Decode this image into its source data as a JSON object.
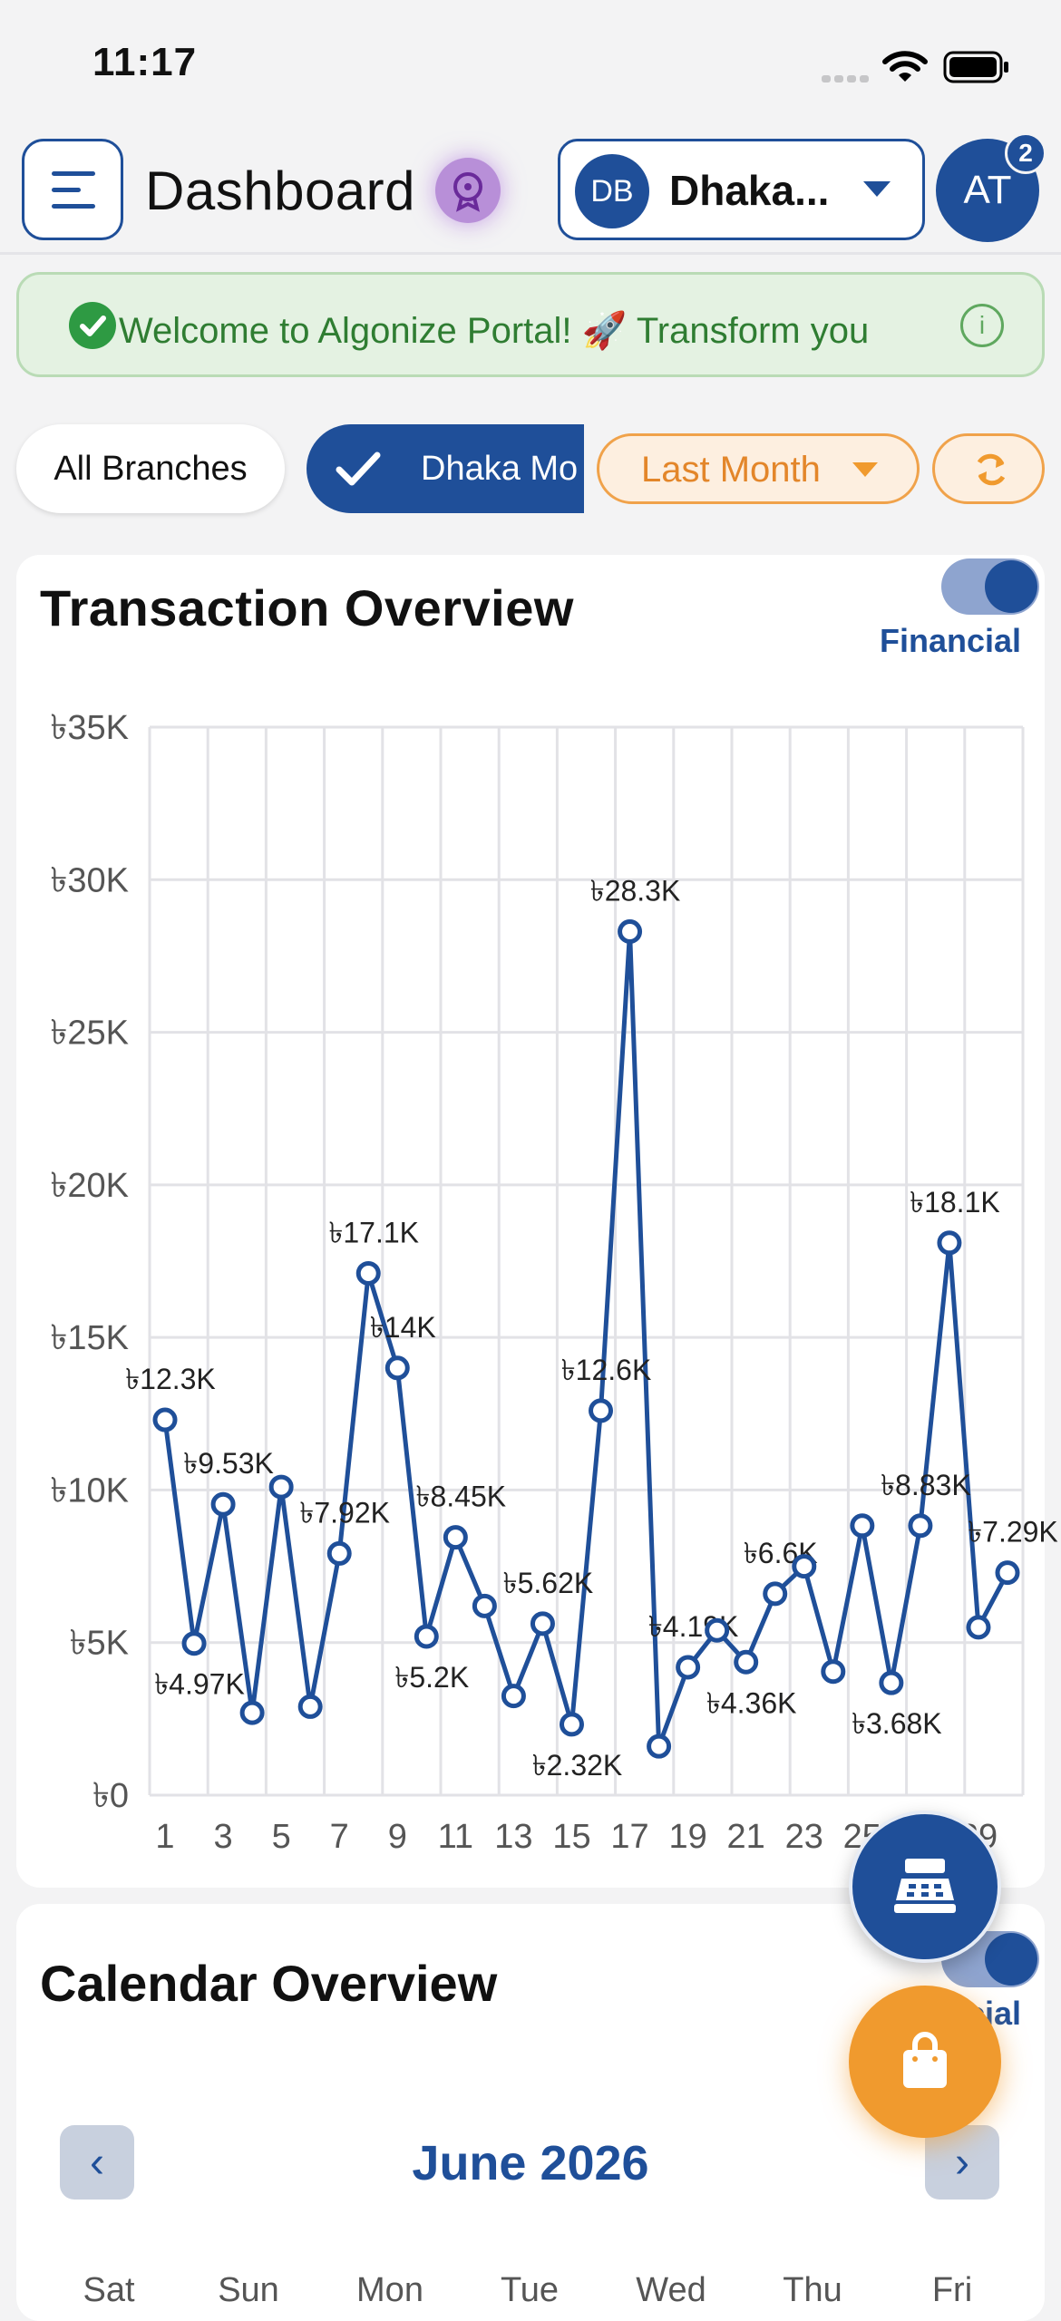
{
  "status_bar": {
    "time": "11:17"
  },
  "header": {
    "title": "Dashboard",
    "branch_initials": "DB",
    "branch_name": "Dhaka...",
    "user_initials": "AT",
    "notification_count": "2"
  },
  "banner": {
    "text": "Welcome to Algonize Portal! 🚀  Transform you"
  },
  "filters": {
    "all_branches": "All Branches",
    "selected_branch": "Dhaka Mo",
    "period": "Last Month"
  },
  "transaction_overview": {
    "title": "Transaction Overview",
    "toggle_label": "Financial",
    "toggle_on": true
  },
  "chart_data": {
    "type": "line",
    "title": "",
    "xlabel": "",
    "ylabel": "",
    "x": [
      1,
      2,
      3,
      4,
      5,
      6,
      7,
      8,
      9,
      10,
      11,
      12,
      13,
      14,
      15,
      16,
      17,
      18,
      19,
      20,
      21,
      22,
      23,
      24,
      25,
      26,
      27,
      28,
      29,
      30
    ],
    "values": [
      12300,
      4970,
      9530,
      2700,
      10100,
      2900,
      7920,
      17100,
      14000,
      5200,
      8450,
      6200,
      3250,
      5620,
      2320,
      12600,
      28300,
      1600,
      4190,
      5400,
      4360,
      6600,
      7500,
      4050,
      8830,
      3680,
      8830,
      18100,
      5500,
      7290
    ],
    "point_labels": [
      "৳12.3K",
      "৳4.97K",
      "৳9.53K",
      "",
      "",
      "",
      "৳7.92K",
      "৳17.1K",
      "৳14K",
      "৳5.2K",
      "৳8.45K",
      "",
      "",
      "৳5.62K",
      "৳2.32K",
      "৳12.6K",
      "৳28.3K",
      "",
      "৳4.19K",
      "",
      "৳4.36K",
      "৳6.6K",
      "",
      "",
      "",
      "৳3.68K",
      "৳8.83K",
      "৳18.1K",
      "",
      "৳7.29K"
    ],
    "ylim": [
      0,
      35000
    ],
    "y_ticks": [
      "৳0",
      "৳5K",
      "৳10K",
      "৳15K",
      "৳20K",
      "৳25K",
      "৳30K",
      "৳35K"
    ],
    "x_ticks": [
      "1",
      "3",
      "5",
      "7",
      "9",
      "11",
      "13",
      "15",
      "17",
      "19",
      "21",
      "23",
      "25",
      "27",
      "29"
    ],
    "grid": true,
    "line_color": "#1f4f99"
  },
  "calendar_overview": {
    "title": "Calendar Overview",
    "toggle_label": "Financial",
    "month": "June 2026",
    "weekdays": [
      "Sat",
      "Sun",
      "Mon",
      "Tue",
      "Wed",
      "Thu",
      "Fri"
    ]
  },
  "colors": {
    "primary": "#1f4f99",
    "accent_orange": "#f09a2e",
    "success": "#2e9a43"
  }
}
